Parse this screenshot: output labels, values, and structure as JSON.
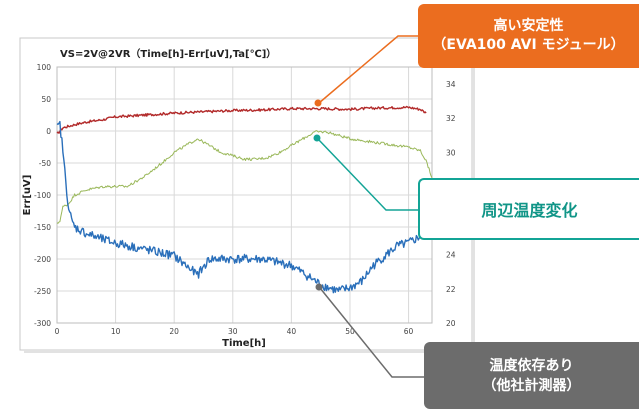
{
  "chart_data": {
    "type": "line",
    "title": "VS=2V@2VR（Time[h]-Err[uV],Ta[℃]）",
    "xlabel": "Time[h]",
    "ylabel": "Err[uV]",
    "xlim": [
      0,
      64
    ],
    "ylim": [
      -300,
      100
    ],
    "y2lim": [
      20,
      35
    ],
    "x_ticks": [
      0,
      10,
      20,
      30,
      40,
      50,
      60
    ],
    "y_ticks": [
      -300,
      -250,
      -200,
      -150,
      -100,
      -50,
      0,
      50,
      100
    ],
    "y2_ticks": [
      20,
      22,
      24,
      26,
      28,
      30,
      32,
      34
    ],
    "grid": true,
    "legend": "none",
    "series": [
      {
        "color": "#b22a2a",
        "axis": "left",
        "x": [
          0,
          0.5,
          1,
          3,
          5,
          8,
          10,
          15,
          20,
          25,
          30,
          35,
          40,
          45,
          50,
          55,
          60,
          62,
          63
        ],
        "y": [
          -5,
          0,
          5,
          10,
          14,
          18,
          22,
          25,
          28,
          30,
          32,
          33,
          35,
          35,
          34,
          36,
          37,
          34,
          28
        ]
      },
      {
        "color": "#9ab85a",
        "axis": "right",
        "x": [
          0,
          0.5,
          1,
          2,
          3,
          5,
          8,
          10,
          12,
          15,
          18,
          20,
          22,
          24,
          26,
          28,
          30,
          32,
          34,
          36,
          38,
          40,
          42,
          44,
          45,
          46,
          48,
          50,
          52,
          54,
          56,
          58,
          60,
          62,
          63,
          64
        ],
        "y": [
          25.8,
          26,
          26.8,
          27,
          27.5,
          27.8,
          28,
          28,
          28,
          28.6,
          29.4,
          30,
          30.4,
          30.8,
          30.4,
          30,
          29.8,
          29.6,
          29.6,
          29.7,
          30,
          30.4,
          30.8,
          31.2,
          31.2,
          31.2,
          31,
          30.8,
          30.7,
          30.6,
          30.5,
          30.4,
          30.3,
          30.1,
          29.5,
          28.5
        ]
      },
      {
        "color": "#2a6fba",
        "axis": "left",
        "x": [
          0,
          0.5,
          1,
          1.5,
          2,
          2.5,
          3,
          5,
          8,
          10,
          15,
          20,
          22,
          24,
          26,
          28,
          30,
          35,
          40,
          45,
          48,
          50,
          52,
          54,
          56,
          58,
          60,
          62,
          63
        ],
        "y": [
          5,
          10,
          -30,
          -80,
          -120,
          -140,
          -150,
          -160,
          -170,
          -175,
          -185,
          -195,
          -210,
          -225,
          -200,
          -200,
          -200,
          -200,
          -210,
          -240,
          -250,
          -245,
          -235,
          -210,
          -195,
          -180,
          -175,
          -165,
          -155
        ]
      }
    ],
    "annotations": [
      "高い安定性\n（EVA100 AVI モジュール）",
      "周辺温度変化",
      "温度依存あり\n（他社計測器）"
    ]
  },
  "callouts": {
    "stability_line1": "高い安定性",
    "stability_line2": "（EVA100 AVI モジュール）",
    "ambient": "周辺温度変化",
    "dependency_line1": "温度依存あり",
    "dependency_line2": "（他社計測器）"
  }
}
